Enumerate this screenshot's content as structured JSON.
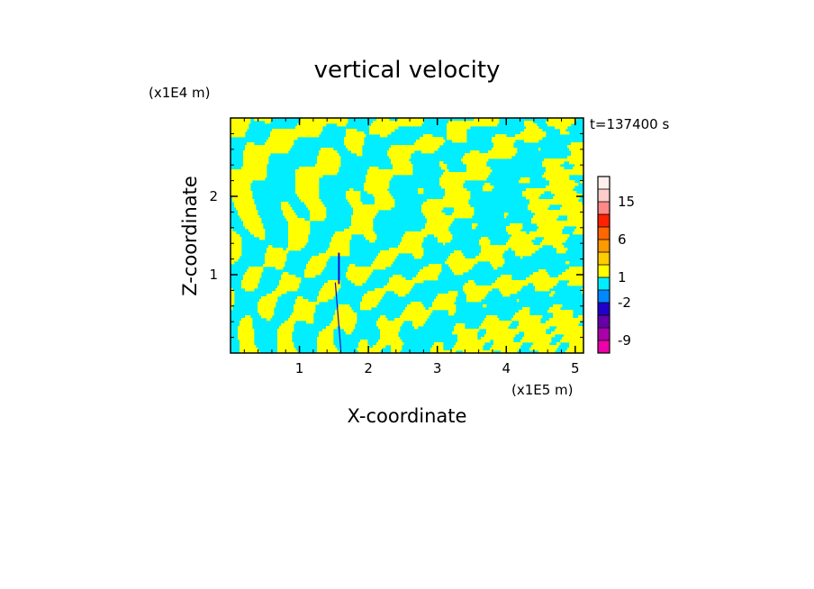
{
  "chart_data": {
    "type": "heatmap",
    "title": "vertical velocity",
    "xlabel": "X-coordinate",
    "ylabel": "Z-coordinate",
    "x_unit": "(x1E5 m)",
    "y_unit": "(x1E4 m)",
    "time_label": "t=137400 s",
    "xlim": [
      0.0,
      5.12
    ],
    "ylim": [
      0.0,
      3.0
    ],
    "x_ticks": [
      1,
      2,
      3,
      4,
      5
    ],
    "x_tick_labels": [
      "1",
      "2",
      "3",
      "4",
      "5"
    ],
    "y_ticks": [
      1,
      2
    ],
    "y_tick_labels": [
      "1",
      "2"
    ],
    "field_colors": {
      "positive": "#ffff00",
      "negative": "#00eeff",
      "strong_negative": "#2200cc"
    },
    "colorbar": {
      "levels": [
        {
          "label": "",
          "color": "#fff0ee"
        },
        {
          "label": "15",
          "color": "#ffcccc"
        },
        {
          "label": "",
          "color": "#ff8888"
        },
        {
          "label": "",
          "color": "#ff2200"
        },
        {
          "label": "6",
          "color": "#ff6600"
        },
        {
          "label": "",
          "color": "#ff9900"
        },
        {
          "label": "",
          "color": "#ffcc00"
        },
        {
          "label": "1",
          "color": "#ffff00"
        },
        {
          "label": "",
          "color": "#00eeff"
        },
        {
          "label": "-2",
          "color": "#0088ff"
        },
        {
          "label": "",
          "color": "#2200cc"
        },
        {
          "label": "",
          "color": "#6600aa"
        },
        {
          "label": "-9",
          "color": "#aa00aa"
        },
        {
          "label": "",
          "color": "#ee00aa"
        }
      ]
    }
  }
}
